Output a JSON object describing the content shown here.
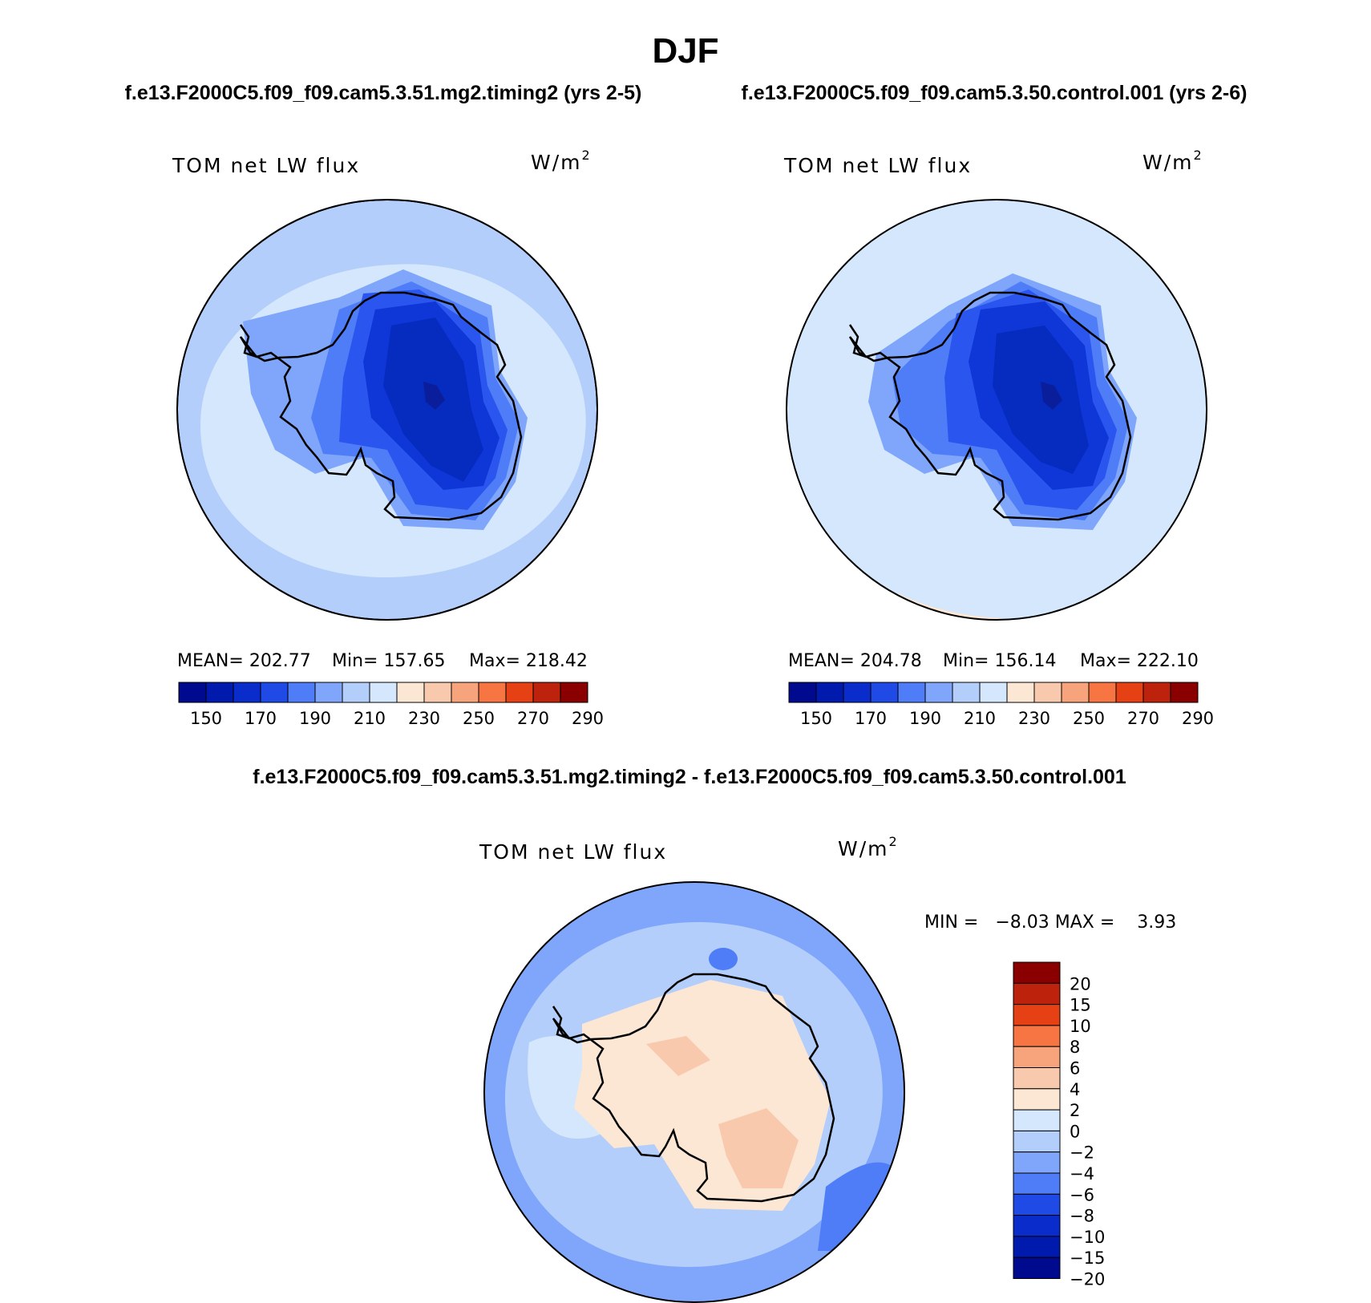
{
  "figure": {
    "season_title": "DJF",
    "case_label_left": "f.e13.F2000C5.f09_f09.cam5.3.51.mg2.timing2 (yrs 2-5)",
    "case_label_right": "f.e13.F2000C5.f09_f09.cam5.3.50.control.001 (yrs 2-6)",
    "diff_title": "f.e13.F2000C5.f09_f09.cam5.3.51.mg2.timing2 - f.e13.F2000C5.f09_f09.cam5.3.50.control.001"
  },
  "panels": [
    {
      "variable": "TOM net LW flux",
      "units_base": "W/m",
      "units_exp": "2",
      "stats": {
        "mean": "MEAN= 202.77",
        "min": "Min= 157.65",
        "max": "Max= 218.42"
      },
      "background_color": "#d4e7fc",
      "ring_color": "#b3cefa",
      "ice_sheet_colors": [
        "#7fa6fa",
        "#4f7df7",
        "#2a55ee",
        "#0f36d6",
        "#052bbf",
        "#0a1e9b"
      ]
    },
    {
      "variable": "TOM net LW flux",
      "units_base": "W/m",
      "units_exp": "2",
      "stats": {
        "mean": "MEAN= 204.78",
        "min": "Min= 156.14",
        "max": "Max= 222.10"
      },
      "background_color": "#d4e7fc",
      "ring_color": "#d4e7fc",
      "ice_sheet_colors": [
        "#7fa6fa",
        "#4f7df7",
        "#2a55ee",
        "#0f36d6",
        "#052bbf",
        "#0a1e9b"
      ]
    },
    {
      "variable": "TOM net LW flux",
      "units_base": "W/m",
      "units_exp": "2",
      "stats": {
        "min_max": "MIN =   −8.03 MAX =    3.93"
      },
      "background_color": "#b3cefa",
      "ring_color": "#7fa6fa",
      "ice_sheet_colors": [
        "#fce6d4",
        "#f9c9ad"
      ]
    }
  ],
  "abs_colorbar": {
    "colors": [
      "#000a8f",
      "#001aae",
      "#0a2ccb",
      "#1f4ae6",
      "#4f7df7",
      "#7fa6fa",
      "#b3cefa",
      "#d4e7fc",
      "#fce6d4",
      "#f9c9ad",
      "#f7a37b",
      "#f77542",
      "#e64115",
      "#bd230c",
      "#8a0000"
    ],
    "tick_labels": [
      "150",
      "170",
      "190",
      "210",
      "230",
      "250",
      "270",
      "290"
    ]
  },
  "diff_colorbar": {
    "colors_top_to_bottom": [
      "#8a0000",
      "#bd230c",
      "#e64115",
      "#f77542",
      "#f7a37b",
      "#f9c9ad",
      "#fce6d4",
      "#d4e7fc",
      "#b3cefa",
      "#7fa6fa",
      "#4f7df7",
      "#1f4ae6",
      "#0a2ccb",
      "#001aae",
      "#000a8f"
    ],
    "tick_labels": [
      "20",
      "15",
      "10",
      "8",
      "6",
      "4",
      "2",
      "0",
      "−2",
      "−4",
      "−6",
      "−8",
      "−10",
      "−15",
      "−20"
    ]
  }
}
